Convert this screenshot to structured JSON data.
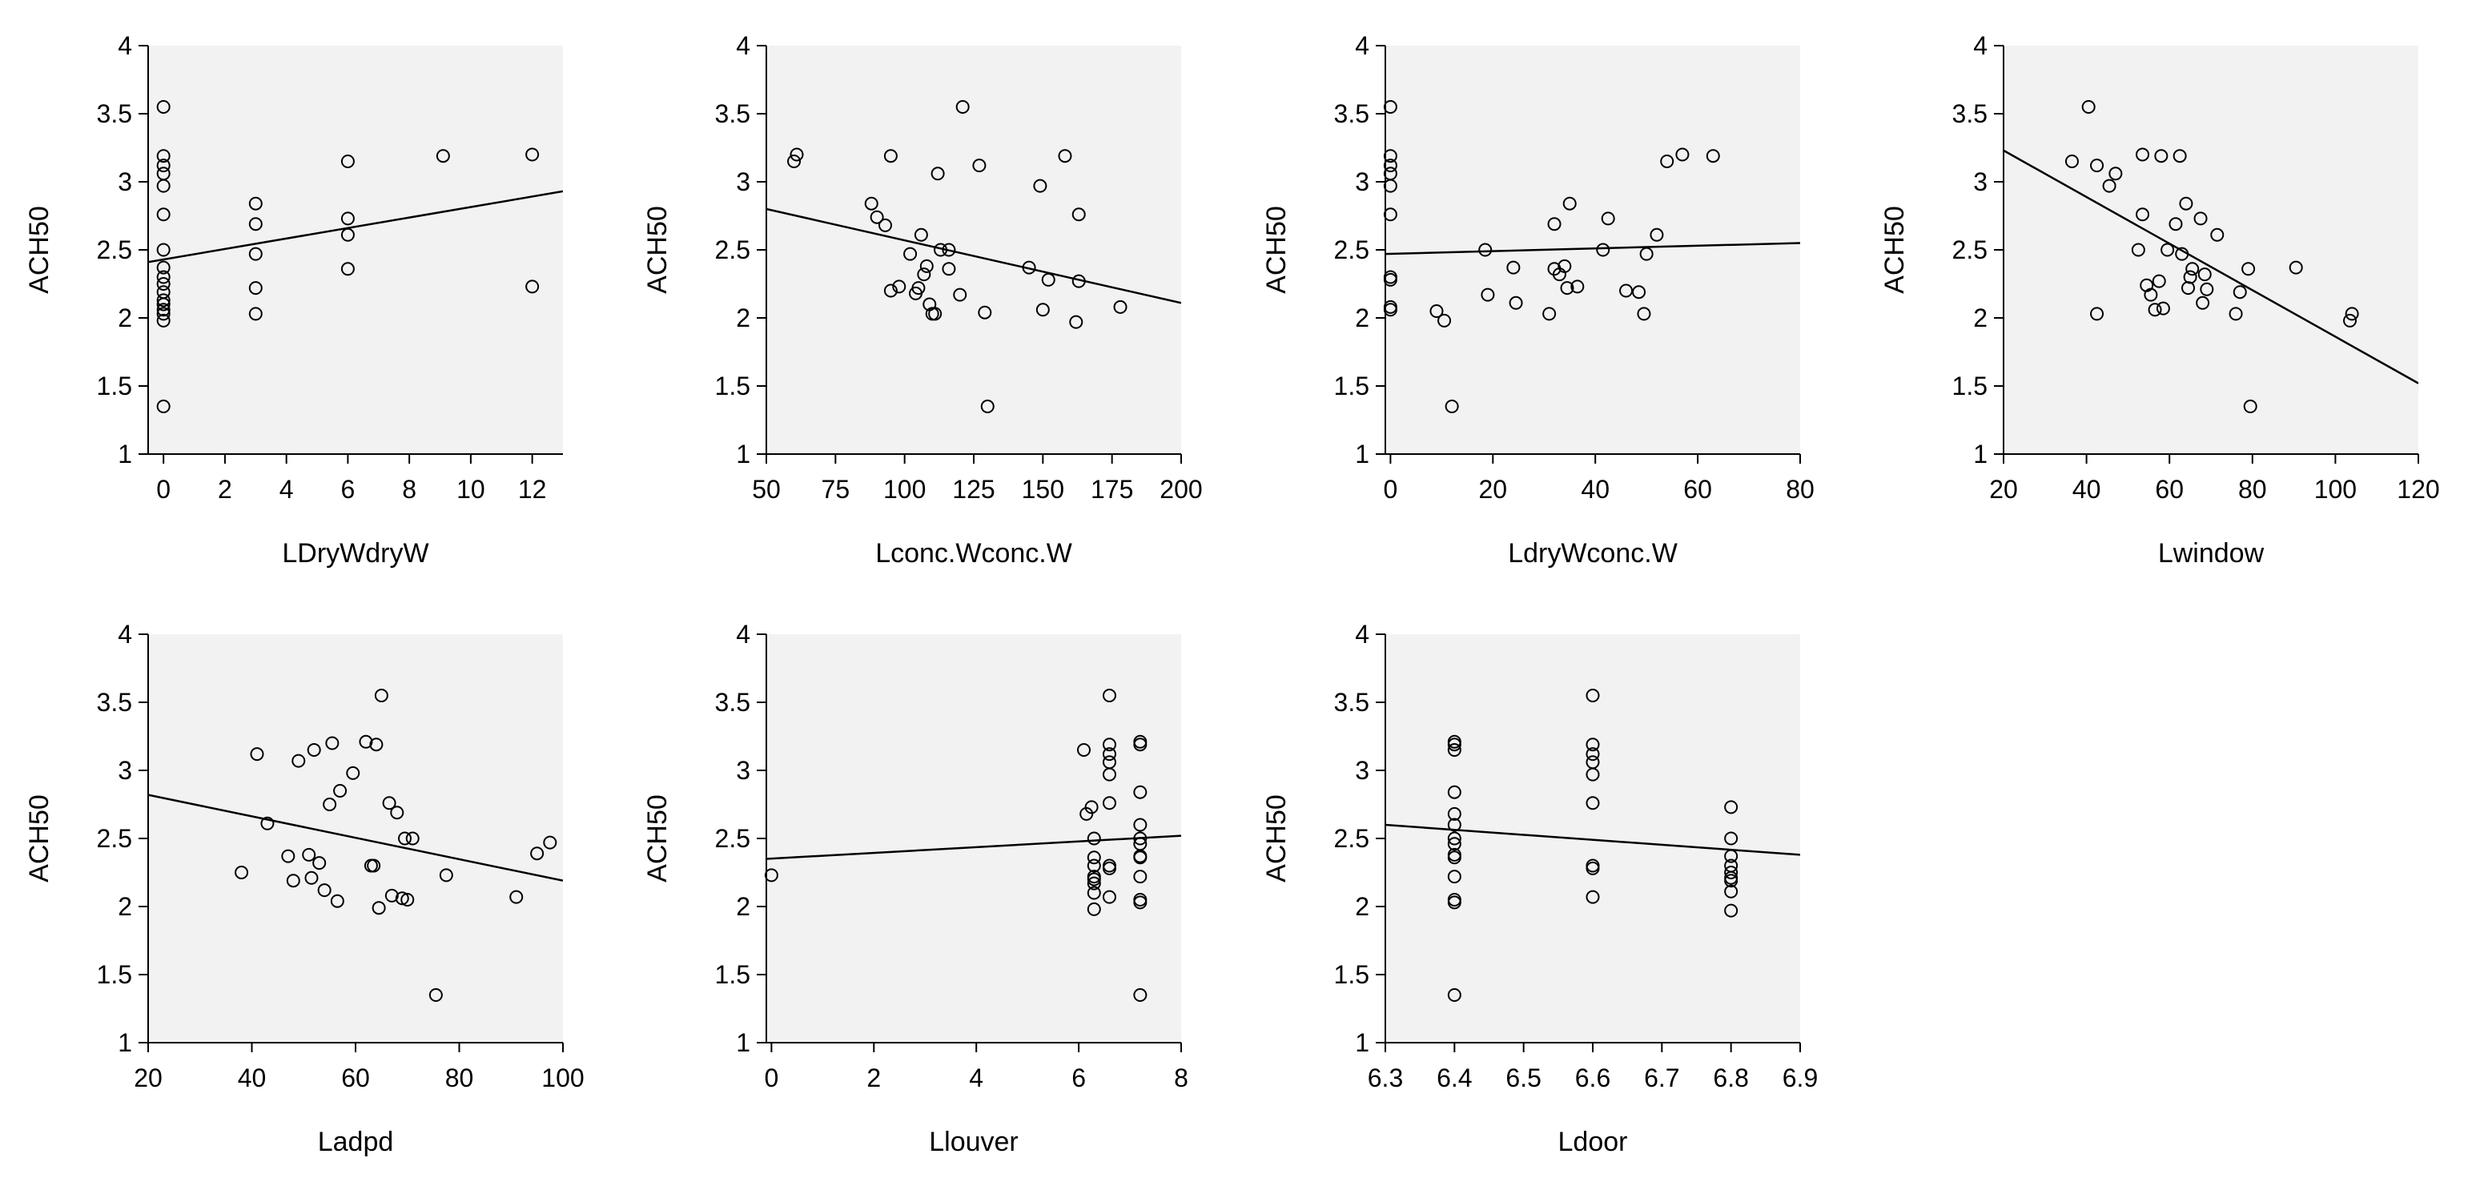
{
  "figure": {
    "panel_background": "#f2f2f2",
    "axis_color": "#000000"
  },
  "chart_data": [
    {
      "type": "scatter",
      "id": "p1",
      "xlabel": "LDryWdryW",
      "ylabel": "ACH50",
      "xlim": [
        -0.5,
        13
      ],
      "ylim": [
        1,
        4
      ],
      "xticks": [
        0,
        2,
        4,
        6,
        8,
        10,
        12
      ],
      "yticks": [
        1,
        1.5,
        2,
        2.5,
        3,
        3.5,
        4
      ],
      "points": [
        [
          0,
          3.55
        ],
        [
          0,
          3.19
        ],
        [
          0,
          3.12
        ],
        [
          0,
          3.06
        ],
        [
          0,
          2.97
        ],
        [
          0,
          2.76
        ],
        [
          0,
          2.5
        ],
        [
          0,
          2.37
        ],
        [
          0,
          2.3
        ],
        [
          0,
          2.25
        ],
        [
          0,
          2.19
        ],
        [
          0,
          2.13
        ],
        [
          0,
          2.1
        ],
        [
          0,
          2.06
        ],
        [
          0,
          2.03
        ],
        [
          0,
          1.98
        ],
        [
          0,
          1.35
        ],
        [
          3,
          2.84
        ],
        [
          3,
          2.69
        ],
        [
          3,
          2.47
        ],
        [
          3,
          2.22
        ],
        [
          3,
          2.03
        ],
        [
          6,
          3.15
        ],
        [
          6,
          2.73
        ],
        [
          6,
          2.61
        ],
        [
          6,
          2.36
        ],
        [
          9.1,
          3.19
        ],
        [
          12,
          3.2
        ],
        [
          12,
          2.23
        ]
      ],
      "fit": [
        [
          -0.5,
          2.41
        ],
        [
          13,
          2.93
        ]
      ]
    },
    {
      "type": "scatter",
      "id": "p2",
      "xlabel": "Lconc.Wconc.W",
      "ylabel": "ACH50",
      "xlim": [
        50,
        200
      ],
      "ylim": [
        1,
        4
      ],
      "xticks": [
        50,
        75,
        100,
        125,
        150,
        175,
        200
      ],
      "yticks": [
        1,
        1.5,
        2,
        2.5,
        3,
        3.5,
        4
      ],
      "points": [
        [
          60,
          3.15
        ],
        [
          61,
          3.2
        ],
        [
          88,
          2.84
        ],
        [
          90,
          2.74
        ],
        [
          93,
          2.68
        ],
        [
          95,
          3.19
        ],
        [
          95,
          2.2
        ],
        [
          98,
          2.23
        ],
        [
          102,
          2.47
        ],
        [
          104,
          2.18
        ],
        [
          105,
          2.22
        ],
        [
          106,
          2.61
        ],
        [
          107,
          2.32
        ],
        [
          108,
          2.38
        ],
        [
          109,
          2.1
        ],
        [
          110,
          2.03
        ],
        [
          111,
          2.03
        ],
        [
          112,
          3.06
        ],
        [
          113,
          2.5
        ],
        [
          116,
          2.5
        ],
        [
          116,
          2.36
        ],
        [
          120,
          2.17
        ],
        [
          121,
          3.55
        ],
        [
          127,
          3.12
        ],
        [
          129,
          2.04
        ],
        [
          130,
          1.35
        ],
        [
          145,
          2.37
        ],
        [
          149,
          2.97
        ],
        [
          150,
          2.06
        ],
        [
          152,
          2.28
        ],
        [
          158,
          3.19
        ],
        [
          162,
          1.97
        ],
        [
          163,
          2.76
        ],
        [
          163,
          2.27
        ],
        [
          178,
          2.08
        ]
      ],
      "fit": [
        [
          50,
          2.8
        ],
        [
          200,
          2.11
        ]
      ]
    },
    {
      "type": "scatter",
      "id": "p3",
      "xlabel": "LdryWconc.W",
      "ylabel": "ACH50",
      "xlim": [
        -1,
        80
      ],
      "ylim": [
        1,
        4
      ],
      "xticks": [
        0,
        20,
        40,
        60,
        80
      ],
      "yticks": [
        1,
        1.5,
        2,
        2.5,
        3,
        3.5,
        4
      ],
      "points": [
        [
          0,
          3.55
        ],
        [
          0,
          3.19
        ],
        [
          0,
          3.12
        ],
        [
          0,
          3.06
        ],
        [
          0,
          2.97
        ],
        [
          0,
          2.76
        ],
        [
          0,
          2.3
        ],
        [
          0,
          2.28
        ],
        [
          0,
          2.08
        ],
        [
          0,
          2.06
        ],
        [
          9,
          2.05
        ],
        [
          10.5,
          1.98
        ],
        [
          12,
          1.35
        ],
        [
          18.5,
          2.5
        ],
        [
          19,
          2.17
        ],
        [
          24,
          2.37
        ],
        [
          24.5,
          2.11
        ],
        [
          31,
          2.03
        ],
        [
          32,
          2.36
        ],
        [
          32,
          2.69
        ],
        [
          33,
          2.32
        ],
        [
          34,
          2.38
        ],
        [
          34.5,
          2.22
        ],
        [
          35,
          2.84
        ],
        [
          36.5,
          2.23
        ],
        [
          41.5,
          2.5
        ],
        [
          42.5,
          2.73
        ],
        [
          46,
          2.2
        ],
        [
          48.5,
          2.19
        ],
        [
          49.5,
          2.03
        ],
        [
          50,
          2.47
        ],
        [
          52,
          2.61
        ],
        [
          54,
          3.15
        ],
        [
          57,
          3.2
        ],
        [
          63,
          3.19
        ]
      ],
      "fit": [
        [
          -1,
          2.47
        ],
        [
          80,
          2.55
        ]
      ]
    },
    {
      "type": "scatter",
      "id": "p4",
      "xlabel": "Lwindow",
      "ylabel": "ACH50",
      "xlim": [
        20,
        120
      ],
      "ylim": [
        1,
        4
      ],
      "xticks": [
        20,
        40,
        60,
        80,
        100,
        120
      ],
      "yticks": [
        1,
        1.5,
        2,
        2.5,
        3,
        3.5,
        4
      ],
      "points": [
        [
          36.5,
          3.15
        ],
        [
          40.5,
          3.55
        ],
        [
          42.5,
          3.12
        ],
        [
          42.5,
          2.03
        ],
        [
          45.5,
          2.97
        ],
        [
          47,
          3.06
        ],
        [
          52.5,
          2.5
        ],
        [
          53.5,
          3.2
        ],
        [
          53.5,
          2.76
        ],
        [
          54.5,
          2.24
        ],
        [
          55.5,
          2.17
        ],
        [
          56.5,
          2.06
        ],
        [
          57.5,
          2.27
        ],
        [
          58,
          3.19
        ],
        [
          58.5,
          2.07
        ],
        [
          59.5,
          2.5
        ],
        [
          61.5,
          2.69
        ],
        [
          62.5,
          3.19
        ],
        [
          63,
          2.47
        ],
        [
          64,
          2.84
        ],
        [
          64.5,
          2.22
        ],
        [
          65,
          2.3
        ],
        [
          65.5,
          2.36
        ],
        [
          67.5,
          2.73
        ],
        [
          68,
          2.11
        ],
        [
          68.5,
          2.32
        ],
        [
          69,
          2.21
        ],
        [
          71.5,
          2.61
        ],
        [
          76,
          2.03
        ],
        [
          77,
          2.19
        ],
        [
          79,
          2.36
        ],
        [
          79.5,
          1.35
        ],
        [
          90.5,
          2.37
        ],
        [
          103.5,
          1.98
        ],
        [
          104,
          2.03
        ]
      ],
      "fit": [
        [
          20,
          3.23
        ],
        [
          120,
          1.52
        ]
      ]
    },
    {
      "type": "scatter",
      "id": "p5",
      "xlabel": "Ladpd",
      "ylabel": "ACH50",
      "xlim": [
        20,
        100
      ],
      "ylim": [
        1,
        4
      ],
      "xticks": [
        20,
        40,
        60,
        80,
        100
      ],
      "yticks": [
        1,
        1.5,
        2,
        2.5,
        3,
        3.5,
        4
      ],
      "points": [
        [
          38,
          2.25
        ],
        [
          41,
          3.12
        ],
        [
          43,
          2.61
        ],
        [
          47,
          2.37
        ],
        [
          48,
          2.19
        ],
        [
          49,
          3.07
        ],
        [
          51,
          2.38
        ],
        [
          51.5,
          2.21
        ],
        [
          52,
          3.15
        ],
        [
          53,
          2.32
        ],
        [
          54,
          2.12
        ],
        [
          55,
          2.75
        ],
        [
          55.5,
          3.2
        ],
        [
          56.5,
          2.04
        ],
        [
          57,
          2.85
        ],
        [
          59.5,
          2.98
        ],
        [
          62,
          3.21
        ],
        [
          63,
          2.3
        ],
        [
          63.5,
          2.3
        ],
        [
          64,
          3.19
        ],
        [
          64.5,
          1.99
        ],
        [
          65,
          3.55
        ],
        [
          66.5,
          2.76
        ],
        [
          67,
          2.08
        ],
        [
          68,
          2.69
        ],
        [
          69,
          2.06
        ],
        [
          69.5,
          2.5
        ],
        [
          70,
          2.05
        ],
        [
          71,
          2.5
        ],
        [
          75.5,
          1.35
        ],
        [
          77.5,
          2.23
        ],
        [
          91,
          2.07
        ],
        [
          95,
          2.39
        ],
        [
          97.5,
          2.47
        ]
      ],
      "fit": [
        [
          20,
          2.82
        ],
        [
          100,
          2.19
        ]
      ]
    },
    {
      "type": "scatter",
      "id": "p6",
      "xlabel": "Llouver",
      "ylabel": "ACH50",
      "xlim": [
        -0.1,
        8
      ],
      "ylim": [
        1,
        4
      ],
      "xticks": [
        0,
        2,
        4,
        6,
        8
      ],
      "yticks": [
        1,
        1.5,
        2,
        2.5,
        3,
        3.5,
        4
      ],
      "points": [
        [
          0,
          2.23
        ],
        [
          6.1,
          3.15
        ],
        [
          6.15,
          2.68
        ],
        [
          6.25,
          2.73
        ],
        [
          6.3,
          2.5
        ],
        [
          6.3,
          2.36
        ],
        [
          6.3,
          2.3
        ],
        [
          6.3,
          2.22
        ],
        [
          6.3,
          2.2
        ],
        [
          6.3,
          2.17
        ],
        [
          6.3,
          2.1
        ],
        [
          6.3,
          1.98
        ],
        [
          6.6,
          3.55
        ],
        [
          6.6,
          3.19
        ],
        [
          6.6,
          3.12
        ],
        [
          6.6,
          3.06
        ],
        [
          6.6,
          2.97
        ],
        [
          6.6,
          2.76
        ],
        [
          6.6,
          2.3
        ],
        [
          6.6,
          2.28
        ],
        [
          6.6,
          2.07
        ],
        [
          7.2,
          3.21
        ],
        [
          7.2,
          3.19
        ],
        [
          7.2,
          2.84
        ],
        [
          7.2,
          2.6
        ],
        [
          7.2,
          2.5
        ],
        [
          7.2,
          2.46
        ],
        [
          7.2,
          2.37
        ],
        [
          7.2,
          2.36
        ],
        [
          7.2,
          2.22
        ],
        [
          7.2,
          2.05
        ],
        [
          7.2,
          2.03
        ],
        [
          7.2,
          1.35
        ]
      ],
      "fit": [
        [
          -0.1,
          2.35
        ],
        [
          8,
          2.52
        ]
      ]
    },
    {
      "type": "scatter",
      "id": "p7",
      "xlabel": "Ldoor",
      "ylabel": "ACH50",
      "xlim": [
        6.3,
        6.9
      ],
      "ylim": [
        1,
        4
      ],
      "xticks": [
        6.3,
        6.4,
        6.5,
        6.6,
        6.7,
        6.8,
        6.9
      ],
      "yticks": [
        1,
        1.5,
        2,
        2.5,
        3,
        3.5,
        4
      ],
      "points": [
        [
          6.4,
          3.21
        ],
        [
          6.4,
          3.19
        ],
        [
          6.4,
          3.15
        ],
        [
          6.4,
          2.84
        ],
        [
          6.4,
          2.68
        ],
        [
          6.4,
          2.6
        ],
        [
          6.4,
          2.5
        ],
        [
          6.4,
          2.46
        ],
        [
          6.4,
          2.38
        ],
        [
          6.4,
          2.36
        ],
        [
          6.4,
          2.22
        ],
        [
          6.4,
          2.05
        ],
        [
          6.4,
          2.03
        ],
        [
          6.4,
          1.35
        ],
        [
          6.6,
          3.55
        ],
        [
          6.6,
          3.19
        ],
        [
          6.6,
          3.12
        ],
        [
          6.6,
          3.06
        ],
        [
          6.6,
          2.97
        ],
        [
          6.6,
          2.76
        ],
        [
          6.6,
          2.3
        ],
        [
          6.6,
          2.28
        ],
        [
          6.6,
          2.07
        ],
        [
          6.8,
          2.73
        ],
        [
          6.8,
          2.5
        ],
        [
          6.8,
          2.37
        ],
        [
          6.8,
          2.3
        ],
        [
          6.8,
          2.25
        ],
        [
          6.8,
          2.21
        ],
        [
          6.8,
          2.19
        ],
        [
          6.8,
          2.11
        ],
        [
          6.8,
          1.97
        ]
      ],
      "fit": [
        [
          6.3,
          2.6
        ],
        [
          6.9,
          2.38
        ]
      ]
    }
  ]
}
